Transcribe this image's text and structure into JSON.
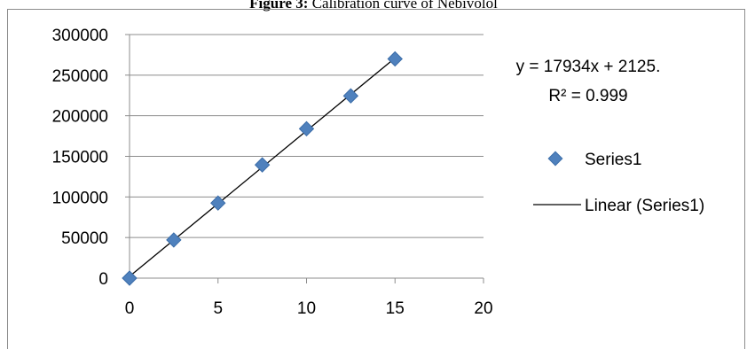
{
  "caption": {
    "label": "Figure 3:",
    "text": "Calibration curve of Nebivolol"
  },
  "chart_data": {
    "type": "scatter",
    "title": "",
    "xlabel": "",
    "ylabel": "",
    "xlim": [
      0,
      20
    ],
    "ylim": [
      0,
      300000
    ],
    "x_ticks": [
      "0",
      "5",
      "10",
      "15",
      "20"
    ],
    "y_ticks": [
      "0",
      "50000",
      "100000",
      "150000",
      "200000",
      "250000",
      "300000"
    ],
    "grid": "horizontal",
    "legend_position": "right",
    "series": [
      {
        "name": "Series1",
        "marker": "diamond",
        "color": "#4f81bd",
        "points": [
          {
            "x": 0,
            "y": 0
          },
          {
            "x": 2.5,
            "y": 47000
          },
          {
            "x": 5,
            "y": 92500
          },
          {
            "x": 7.5,
            "y": 139500
          },
          {
            "x": 10,
            "y": 184000
          },
          {
            "x": 12.5,
            "y": 224500
          },
          {
            "x": 15,
            "y": 270000
          }
        ]
      }
    ],
    "trendline": {
      "name": "Linear (Series1)",
      "color": "#000000",
      "slope": 17934,
      "intercept": 2125,
      "x_range": [
        0,
        15
      ]
    },
    "equation_label": "y = 17934x + 2125.",
    "r2_label": "R² = 0.999"
  }
}
